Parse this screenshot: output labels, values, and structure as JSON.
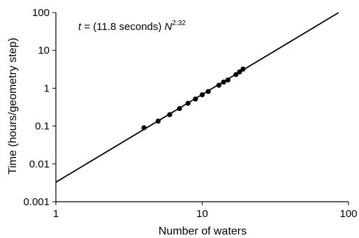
{
  "chart_data": {
    "type": "scatter",
    "xlabel": "Number of waters",
    "ylabel": "Time (hours/geometry step)",
    "x_scale": "log",
    "y_scale": "log",
    "xlim": [
      1,
      100
    ],
    "ylim": [
      0.001,
      100
    ],
    "x_ticks": [
      "1",
      "10",
      "100"
    ],
    "y_ticks": [
      "0.001",
      "0.01",
      "0.1",
      "1",
      "10",
      "100"
    ],
    "annotation": {
      "t": "t",
      "mid": " = (11.8 seconds) ",
      "n": "N",
      "exp": "2.32"
    },
    "fit": {
      "coefficient_seconds": 11.8,
      "exponent": 2.32
    },
    "points": [
      {
        "x": 4,
        "y": 0.09
      },
      {
        "x": 5,
        "y": 0.135
      },
      {
        "x": 6,
        "y": 0.2
      },
      {
        "x": 7,
        "y": 0.29
      },
      {
        "x": 8,
        "y": 0.4
      },
      {
        "x": 9,
        "y": 0.52
      },
      {
        "x": 10,
        "y": 0.67
      },
      {
        "x": 11,
        "y": 0.82
      },
      {
        "x": 13,
        "y": 1.2
      },
      {
        "x": 14,
        "y": 1.45
      },
      {
        "x": 15,
        "y": 1.65
      },
      {
        "x": 17,
        "y": 2.3
      },
      {
        "x": 18,
        "y": 2.7
      },
      {
        "x": 19,
        "y": 3.2
      }
    ],
    "grid": false,
    "legend": "none"
  }
}
